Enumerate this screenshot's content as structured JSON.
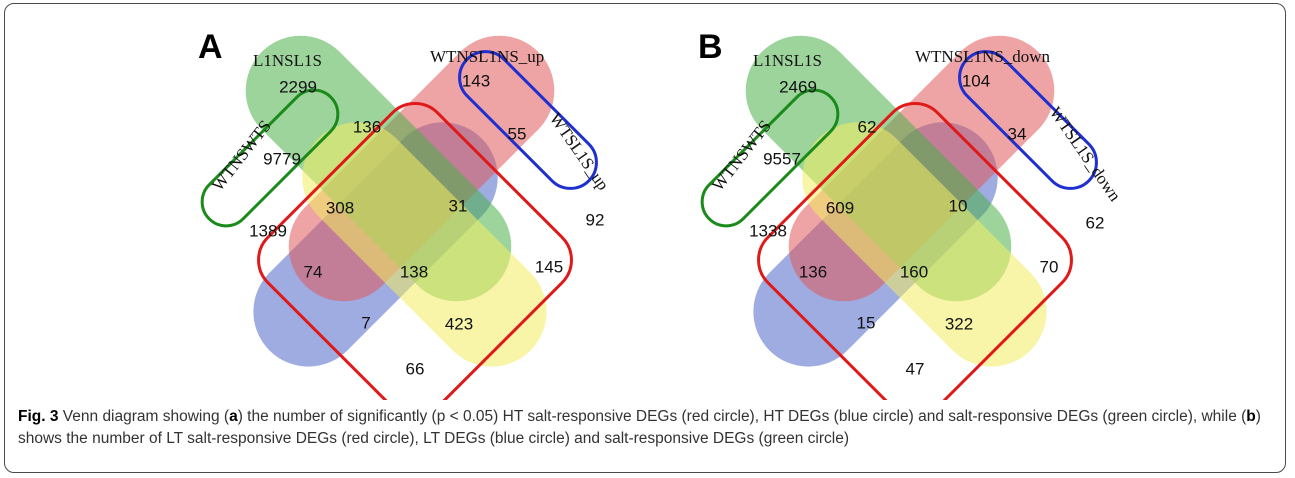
{
  "panels": [
    {
      "letter": "A",
      "set_labels": {
        "left": "WTNSWTS",
        "upper_left": "L1NSL1S",
        "upper_right": "WTNSL1NS_up",
        "right": "WTSL1S_up"
      },
      "regions": {
        "blue_only": "1389",
        "red_only": "2299",
        "green_only": "143",
        "yellow_only": "92",
        "blue_red": "9779",
        "red_green": "136",
        "green_yellow": "55",
        "blue_red_green": "308",
        "red_green_yellow": "31",
        "blue_green": "74",
        "red_yellow": "145",
        "all_four": "138",
        "blue_green_yellow": "7",
        "blue_red_yellow": "423",
        "blue_yellow": "66"
      }
    },
    {
      "letter": "B",
      "set_labels": {
        "left": "WTNSWTS",
        "upper_left": "L1NSL1S",
        "upper_right": "WTNSL1NS_down",
        "right": "WTSL1S_down"
      },
      "regions": {
        "blue_only": "1338",
        "red_only": "2469",
        "green_only": "104",
        "yellow_only": "62",
        "blue_red": "9557",
        "red_green": "62",
        "green_yellow": "34",
        "blue_red_green": "609",
        "red_green_yellow": "10",
        "blue_green": "136",
        "red_yellow": "70",
        "all_four": "160",
        "blue_green_yellow": "15",
        "blue_red_yellow": "322",
        "blue_yellow": "47"
      }
    }
  ],
  "colors": {
    "blue": "#4f67c9",
    "red": "#e05a5a",
    "green": "#4db04a",
    "yellow": "#f2ec62",
    "outline_red": "#e01919",
    "outline_green": "#1a8a1a",
    "outline_blue": "#1f2fd0"
  },
  "caption": {
    "fig_label": "Fig. 3",
    "t1": " Venn diagram showing (",
    "a": "a",
    "t2": ") the number of significantly (p < 0.05) HT salt-responsive DEGs (red circle), HT DEGs (blue circle) and salt-responsive DEGs (green circle), while (",
    "b": "b",
    "t3": ") shows the number of LT salt-responsive DEGs (red circle), LT DEGs (blue circle) and salt-responsive DEGs (green circle)"
  }
}
